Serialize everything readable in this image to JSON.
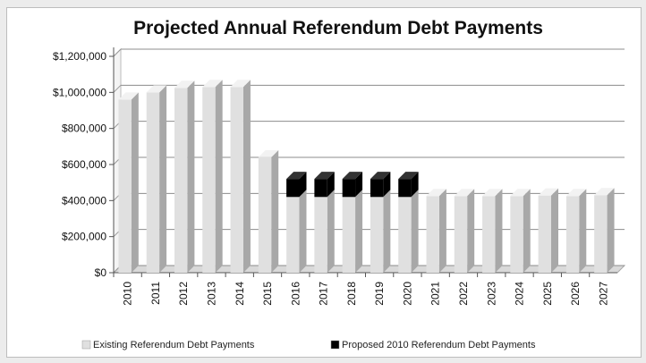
{
  "chart_data": {
    "type": "bar",
    "title": "Projected Annual Referendum Debt Payments",
    "xlabel": "",
    "ylabel": "",
    "ylim": [
      0,
      1200000
    ],
    "y_ticks": [
      "$0",
      "$200,000",
      "$400,000",
      "$600,000",
      "$800,000",
      "$1,000,000",
      "$1,200,000"
    ],
    "y_tick_values": [
      0,
      200000,
      400000,
      600000,
      800000,
      1000000,
      1200000
    ],
    "stacked": true,
    "grid": true,
    "legend_position": "bottom",
    "categories": [
      "2010",
      "2011",
      "2012",
      "2013",
      "2014",
      "2015",
      "2016",
      "2017",
      "2018",
      "2019",
      "2020",
      "2021",
      "2022",
      "2023",
      "2024",
      "2025",
      "2026",
      "2027"
    ],
    "series": [
      {
        "name": "Existing Referendum Debt Payments",
        "color": "#e0e0e0",
        "values": [
          960000,
          1000000,
          1025000,
          1030000,
          1030000,
          640000,
          420000,
          420000,
          420000,
          420000,
          420000,
          425000,
          425000,
          425000,
          425000,
          428000,
          425000,
          430000
        ]
      },
      {
        "name": "Proposed 2010 Referendum Debt Payments",
        "color": "#000000",
        "values": [
          0,
          0,
          0,
          0,
          0,
          0,
          100000,
          100000,
          100000,
          100000,
          100000,
          0,
          0,
          0,
          0,
          0,
          0,
          0
        ]
      }
    ]
  }
}
